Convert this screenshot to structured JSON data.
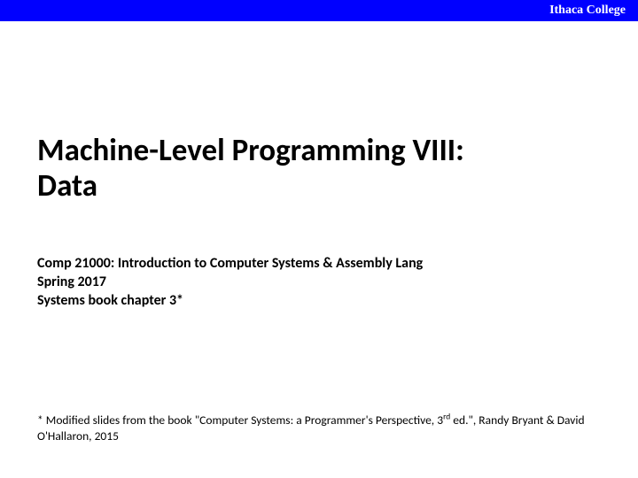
{
  "header": {
    "institution": "Ithaca College",
    "bar_color": "#0000ff",
    "text_color": "#ffffff"
  },
  "title": {
    "line1": "Machine-Level Programming VIII:",
    "line2": "Data",
    "fontsize": 35,
    "color": "#000000"
  },
  "course": {
    "line1": "Comp 21000: Introduction to Computer Systems & Assembly Lang",
    "line2": "Spring 2017",
    "line3": "Systems book chapter 3*",
    "fontsize": 16,
    "color": "#000000"
  },
  "footnote": {
    "prefix": "* Modified slides from the book \"Computer Systems: a Programmer's Perspective, 3",
    "sup": "rd",
    "suffix": " ed.\", Randy Bryant & David O'Hallaron, 2015",
    "fontsize": 13.5,
    "color": "#000000"
  },
  "background_color": "#ffffff"
}
